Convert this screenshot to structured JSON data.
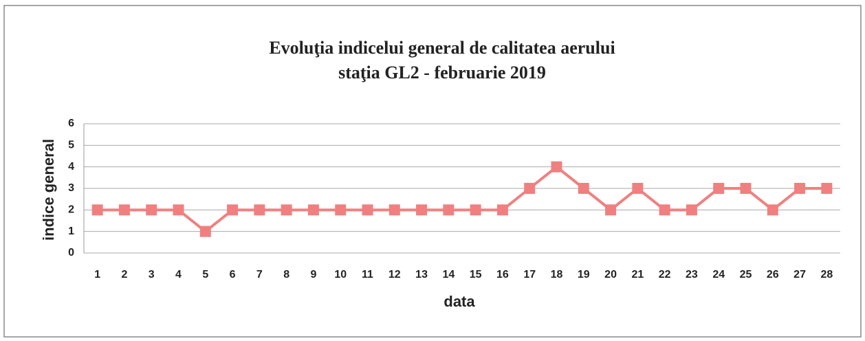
{
  "chart_data": {
    "type": "line",
    "title": "Evoluţia indicelui general de calitatea aerului",
    "subtitle": "staţia GL2 - februarie 2019",
    "x_label": "data",
    "y_label": "indice general",
    "categories": [
      "1",
      "2",
      "3",
      "4",
      "5",
      "6",
      "7",
      "8",
      "9",
      "10",
      "11",
      "12",
      "13",
      "14",
      "15",
      "16",
      "17",
      "18",
      "19",
      "20",
      "21",
      "22",
      "23",
      "24",
      "25",
      "26",
      "27",
      "28"
    ],
    "series": [
      {
        "name": "indice general",
        "color": "#f08080",
        "values": [
          2,
          2,
          2,
          2,
          1,
          2,
          2,
          2,
          2,
          2,
          2,
          2,
          2,
          2,
          2,
          2,
          3,
          4,
          3,
          2,
          3,
          2,
          2,
          3,
          3,
          2,
          3,
          3
        ]
      }
    ],
    "ylim": [
      0,
      6
    ],
    "yticks": [
      0,
      1,
      2,
      3,
      4,
      5,
      6
    ],
    "grid": true
  }
}
